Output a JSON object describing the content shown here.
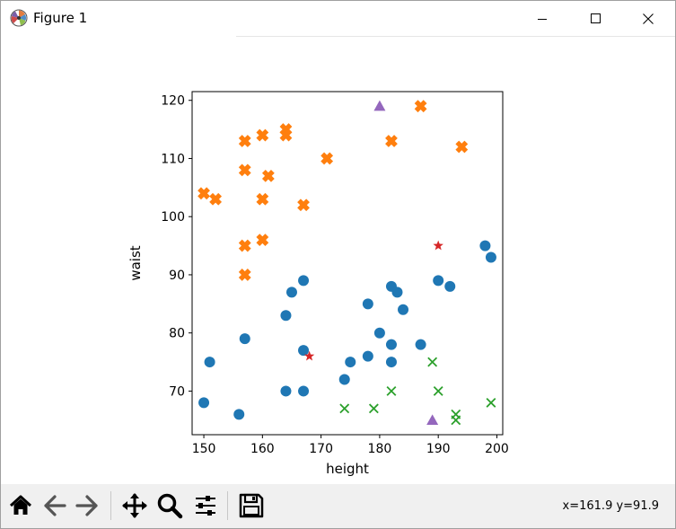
{
  "window": {
    "title": "Figure 1"
  },
  "toolbar": {
    "buttons": [
      "home-icon",
      "back-icon",
      "forward-icon",
      "pan-icon",
      "zoom-icon",
      "configure-subplots-icon",
      "save-icon"
    ],
    "coordinates": "x=161.9 y=91.9"
  },
  "chart_data": {
    "type": "scatter",
    "xlabel": "height",
    "ylabel": "waist",
    "xlim": [
      148,
      201
    ],
    "ylim": [
      62.5,
      121.5
    ],
    "xticks": [
      150,
      160,
      170,
      180,
      190,
      200
    ],
    "yticks": [
      70,
      80,
      90,
      100,
      110,
      120
    ],
    "grid": false,
    "series": [
      {
        "marker": "circle",
        "color": "#1f77b4",
        "points": [
          [
            150,
            68
          ],
          [
            151,
            75
          ],
          [
            156,
            66
          ],
          [
            157,
            79
          ],
          [
            164,
            70
          ],
          [
            164,
            83
          ],
          [
            165,
            87
          ],
          [
            167,
            89
          ],
          [
            167,
            77
          ],
          [
            167,
            70
          ],
          [
            174,
            72
          ],
          [
            175,
            75
          ],
          [
            178,
            85
          ],
          [
            178,
            76
          ],
          [
            180,
            80
          ],
          [
            182,
            88
          ],
          [
            182,
            78
          ],
          [
            182,
            75
          ],
          [
            183,
            87
          ],
          [
            184,
            84
          ],
          [
            187,
            78
          ],
          [
            190,
            89
          ],
          [
            192,
            88
          ],
          [
            198,
            95
          ],
          [
            199,
            93
          ]
        ]
      },
      {
        "marker": "X",
        "color": "#ff7f0e",
        "points": [
          [
            150,
            104
          ],
          [
            152,
            103
          ],
          [
            157,
            113
          ],
          [
            157,
            108
          ],
          [
            157,
            95
          ],
          [
            157,
            90
          ],
          [
            160,
            114
          ],
          [
            160,
            103
          ],
          [
            160,
            96
          ],
          [
            161,
            107
          ],
          [
            164,
            115
          ],
          [
            164,
            114
          ],
          [
            167,
            102
          ],
          [
            171,
            110
          ],
          [
            182,
            113
          ],
          [
            187,
            119
          ],
          [
            194,
            112
          ]
        ]
      },
      {
        "marker": "x",
        "color": "#2ca02c",
        "points": [
          [
            174,
            67
          ],
          [
            179,
            67
          ],
          [
            182,
            70
          ],
          [
            189,
            75
          ],
          [
            190,
            70
          ],
          [
            193,
            66
          ],
          [
            193,
            65
          ],
          [
            199,
            68
          ]
        ]
      },
      {
        "marker": "star",
        "color": "#d62728",
        "points": [
          [
            168,
            76
          ],
          [
            190,
            95
          ]
        ]
      },
      {
        "marker": "triangle",
        "color": "#9467bd",
        "points": [
          [
            180,
            119
          ],
          [
            189,
            65
          ]
        ]
      }
    ]
  }
}
